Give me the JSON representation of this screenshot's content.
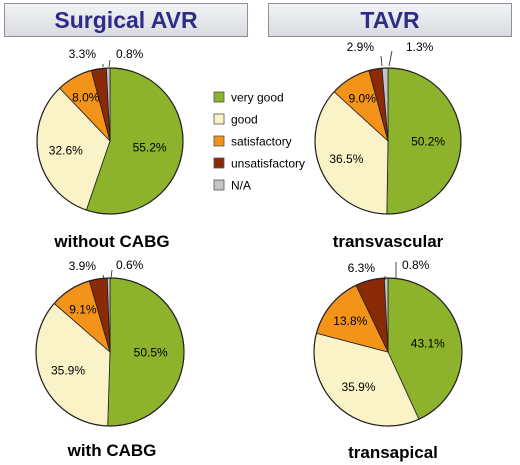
{
  "headers": {
    "left": "Surgical AVR",
    "right": "TAVR"
  },
  "legend": {
    "items": [
      {
        "label": "very good",
        "color": "#8db32c"
      },
      {
        "label": "good",
        "color": "#fbf3c8"
      },
      {
        "label": "satisfactory",
        "color": "#f39319"
      },
      {
        "label": "unsatisfactory",
        "color": "#8b2a07"
      },
      {
        "label": "N/A",
        "color": "#c4c4c4"
      }
    ]
  },
  "chart_data": [
    {
      "type": "pie",
      "title": "without CABG",
      "group": "Surgical AVR",
      "categories": [
        "very good",
        "good",
        "satisfactory",
        "unsatisfactory",
        "N/A"
      ],
      "values": [
        55.2,
        32.6,
        8.0,
        3.3,
        0.8
      ],
      "value_labels": [
        "55.2%",
        "32.6%",
        "8.0%",
        "3.3%",
        "0.8%"
      ]
    },
    {
      "type": "pie",
      "title": "transvascular",
      "group": "TAVR",
      "categories": [
        "very good",
        "good",
        "satisfactory",
        "unsatisfactory",
        "N/A"
      ],
      "values": [
        50.2,
        36.5,
        9.0,
        2.9,
        1.3
      ],
      "value_labels": [
        "50.2%",
        "36.5%",
        "9.0%",
        "2.9%",
        "1.3%"
      ]
    },
    {
      "type": "pie",
      "title": "with CABG",
      "group": "Surgical AVR",
      "categories": [
        "very good",
        "good",
        "satisfactory",
        "unsatisfactory",
        "N/A"
      ],
      "values": [
        50.5,
        35.9,
        9.1,
        3.9,
        0.6
      ],
      "value_labels": [
        "50.5%",
        "35.9%",
        "9.1%",
        "3.9%",
        "0.6%"
      ]
    },
    {
      "type": "pie",
      "title": "transapical",
      "group": "TAVR",
      "categories": [
        "very good",
        "good",
        "satisfactory",
        "unsatisfactory",
        "N/A"
      ],
      "values": [
        43.1,
        35.9,
        13.8,
        6.3,
        0.8
      ],
      "value_labels": [
        "43.1%",
        "35.9%",
        "13.8%",
        "6.3%",
        "0.8%"
      ]
    }
  ]
}
